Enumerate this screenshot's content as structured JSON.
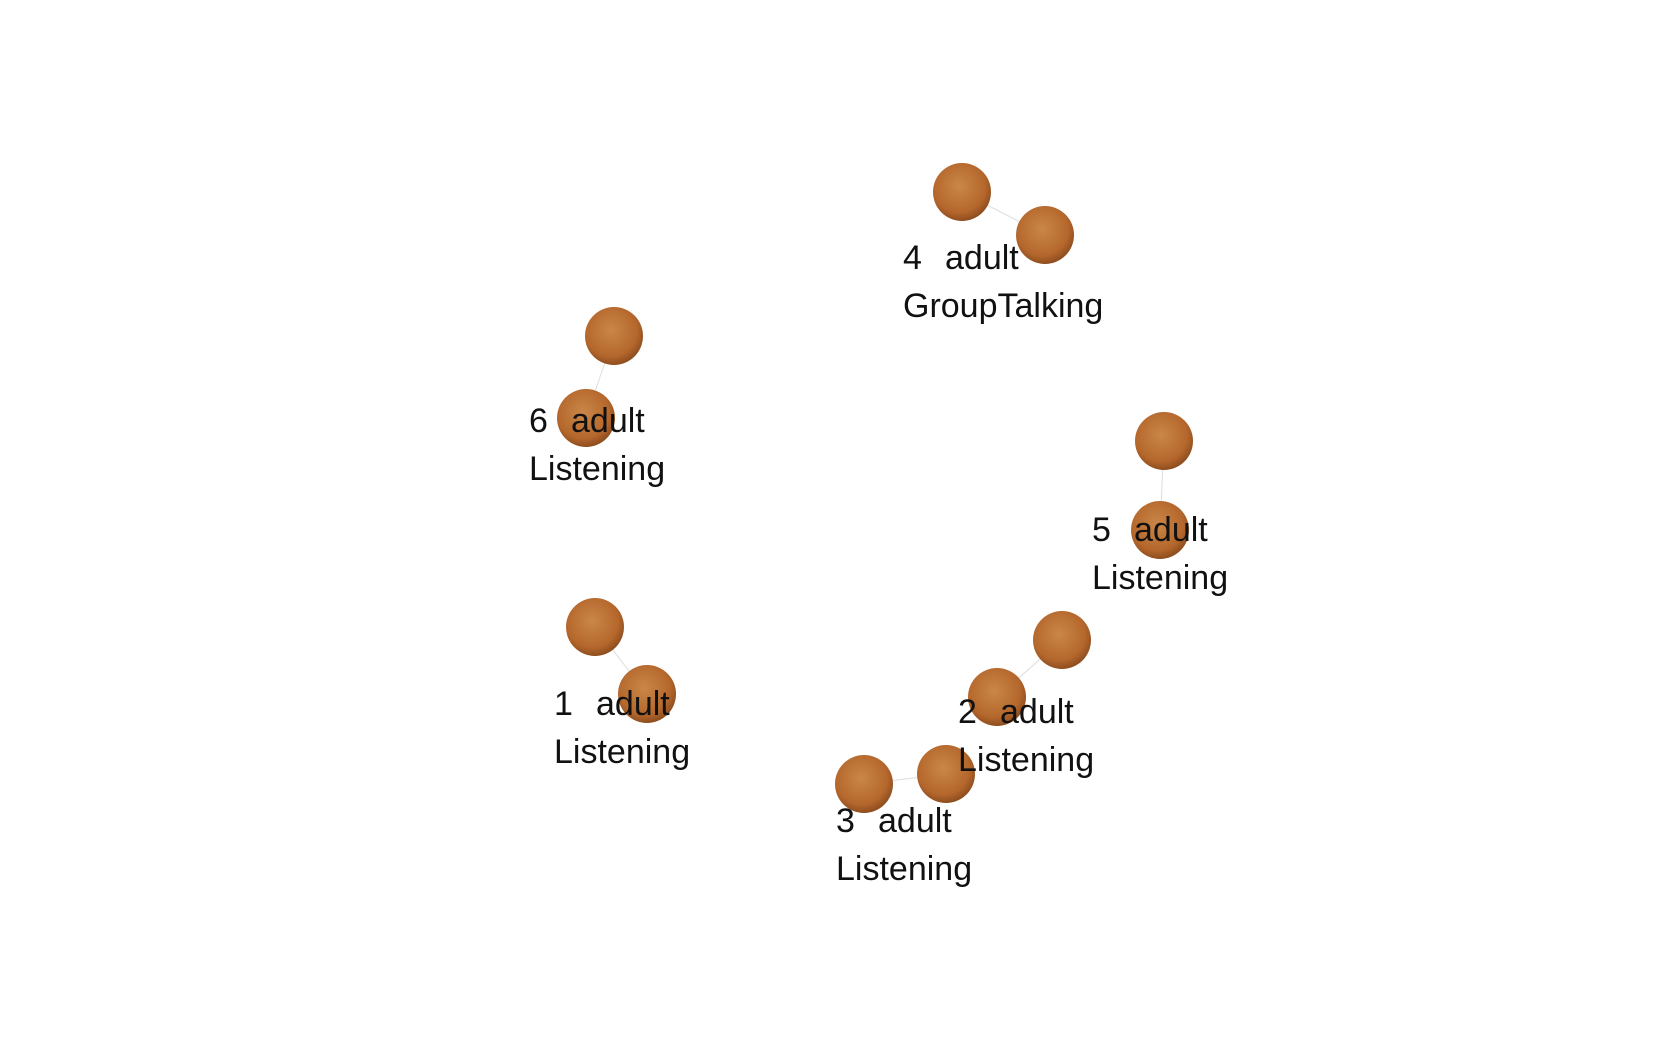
{
  "colors": {
    "background": "#ffffff",
    "agent_fill": "#b5672c",
    "agent_fill_dark": "#8e4e1f",
    "agent_highlight": "#c98748",
    "connector": "#dddddd",
    "label_text": "#111111"
  },
  "agents": [
    {
      "id": "1",
      "type": "adult",
      "state": "Listening"
    },
    {
      "id": "2",
      "type": "adult",
      "state": "Listening"
    },
    {
      "id": "3",
      "type": "adult",
      "state": "Listening"
    },
    {
      "id": "4",
      "type": "adult",
      "state": "GroupTalking"
    },
    {
      "id": "5",
      "type": "adult",
      "state": "Listening"
    },
    {
      "id": "6",
      "type": "adult",
      "state": "Listening"
    }
  ]
}
